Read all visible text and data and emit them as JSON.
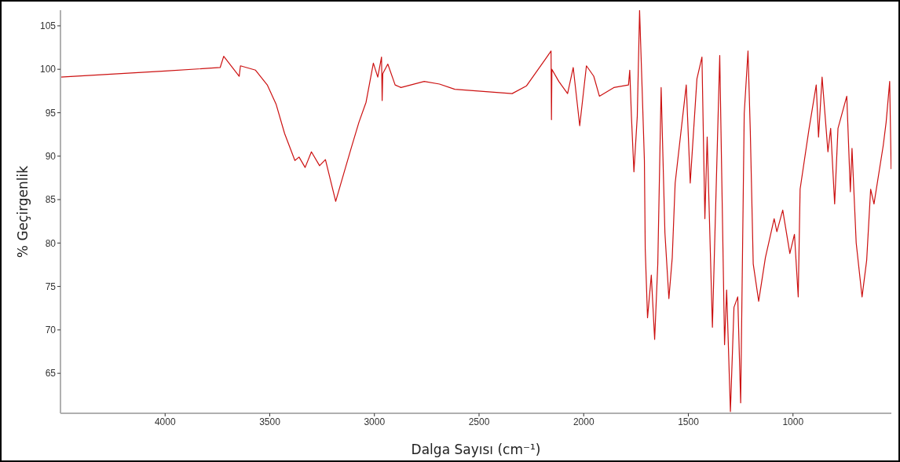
{
  "chart_data": {
    "type": "line",
    "xlabel": "Dalga Sayısı (cm⁻¹)",
    "ylabel": "% Geçirgenlik",
    "xlim": [
      4500,
      530
    ],
    "ylim": [
      60.4,
      106.8
    ],
    "xticks": [
      4000,
      3500,
      3000,
      2500,
      2000,
      1500,
      1000
    ],
    "yticks": [
      65,
      70,
      75,
      80,
      85,
      90,
      95,
      100,
      105
    ],
    "grid": false,
    "legend": false,
    "marker": "none",
    "line_style": "solid",
    "series": [
      {
        "color": "#cc1111",
        "x": [
          4500,
          4000,
          3737,
          3720,
          3646,
          3640,
          3568,
          3512,
          3470,
          3429,
          3380,
          3360,
          3331,
          3301,
          3262,
          3234,
          3185,
          3144,
          3110,
          3074,
          3040,
          3005,
          2984,
          2966,
          2963,
          2960,
          2936,
          2901,
          2873,
          2762,
          2689,
          2616,
          2342,
          2273,
          2182,
          2156,
          2154,
          2152,
          2119,
          2077,
          2050,
          2019,
          1987,
          1952,
          1925,
          1856,
          1786,
          1780,
          1772,
          1760,
          1744,
          1733,
          1721,
          1710,
          1706,
          1695,
          1677,
          1661,
          1646,
          1630,
          1612,
          1593,
          1577,
          1563,
          1510,
          1491,
          1459,
          1435,
          1421,
          1410,
          1385,
          1350,
          1327,
          1317,
          1299,
          1282,
          1264,
          1250,
          1233,
          1215,
          1204,
          1190,
          1164,
          1132,
          1090,
          1077,
          1049,
          1015,
          993,
          975,
          966,
          923,
          889,
          878,
          861,
          833,
          820,
          801,
          785,
          743,
          726,
          718,
          698,
          670,
          648,
          629,
          613,
          569,
          555,
          538,
          531
        ],
        "values": [
          99.1,
          99.8,
          100.2,
          101.5,
          99.2,
          100.4,
          99.9,
          98.2,
          96.0,
          92.6,
          89.5,
          89.9,
          88.7,
          90.5,
          88.9,
          89.6,
          84.8,
          88.2,
          91.0,
          93.9,
          96.2,
          100.7,
          99.1,
          101.4,
          96.4,
          99.5,
          100.6,
          98.2,
          97.9,
          98.6,
          98.3,
          97.7,
          97.2,
          98.1,
          101.2,
          102.1,
          94.2,
          100.0,
          98.6,
          97.2,
          100.2,
          93.5,
          100.4,
          99.2,
          96.9,
          97.9,
          98.2,
          99.9,
          94.6,
          88.2,
          94.6,
          106.8,
          97.9,
          89.5,
          79.3,
          71.4,
          76.3,
          68.9,
          77.6,
          97.9,
          81.2,
          73.6,
          78.3,
          86.9,
          98.2,
          86.9,
          98.9,
          101.4,
          82.8,
          92.2,
          70.3,
          101.6,
          68.3,
          74.6,
          60.6,
          72.6,
          73.8,
          61.6,
          94.9,
          102.1,
          92.9,
          77.6,
          73.3,
          78.3,
          82.8,
          81.3,
          83.8,
          78.8,
          81.0,
          73.8,
          86.2,
          93.2,
          98.2,
          92.2,
          99.1,
          90.5,
          93.2,
          84.5,
          93.2,
          96.9,
          85.9,
          90.9,
          80.0,
          73.8,
          78.0,
          86.2,
          84.5,
          91.2,
          93.9,
          98.6,
          88.5
        ]
      }
    ]
  }
}
